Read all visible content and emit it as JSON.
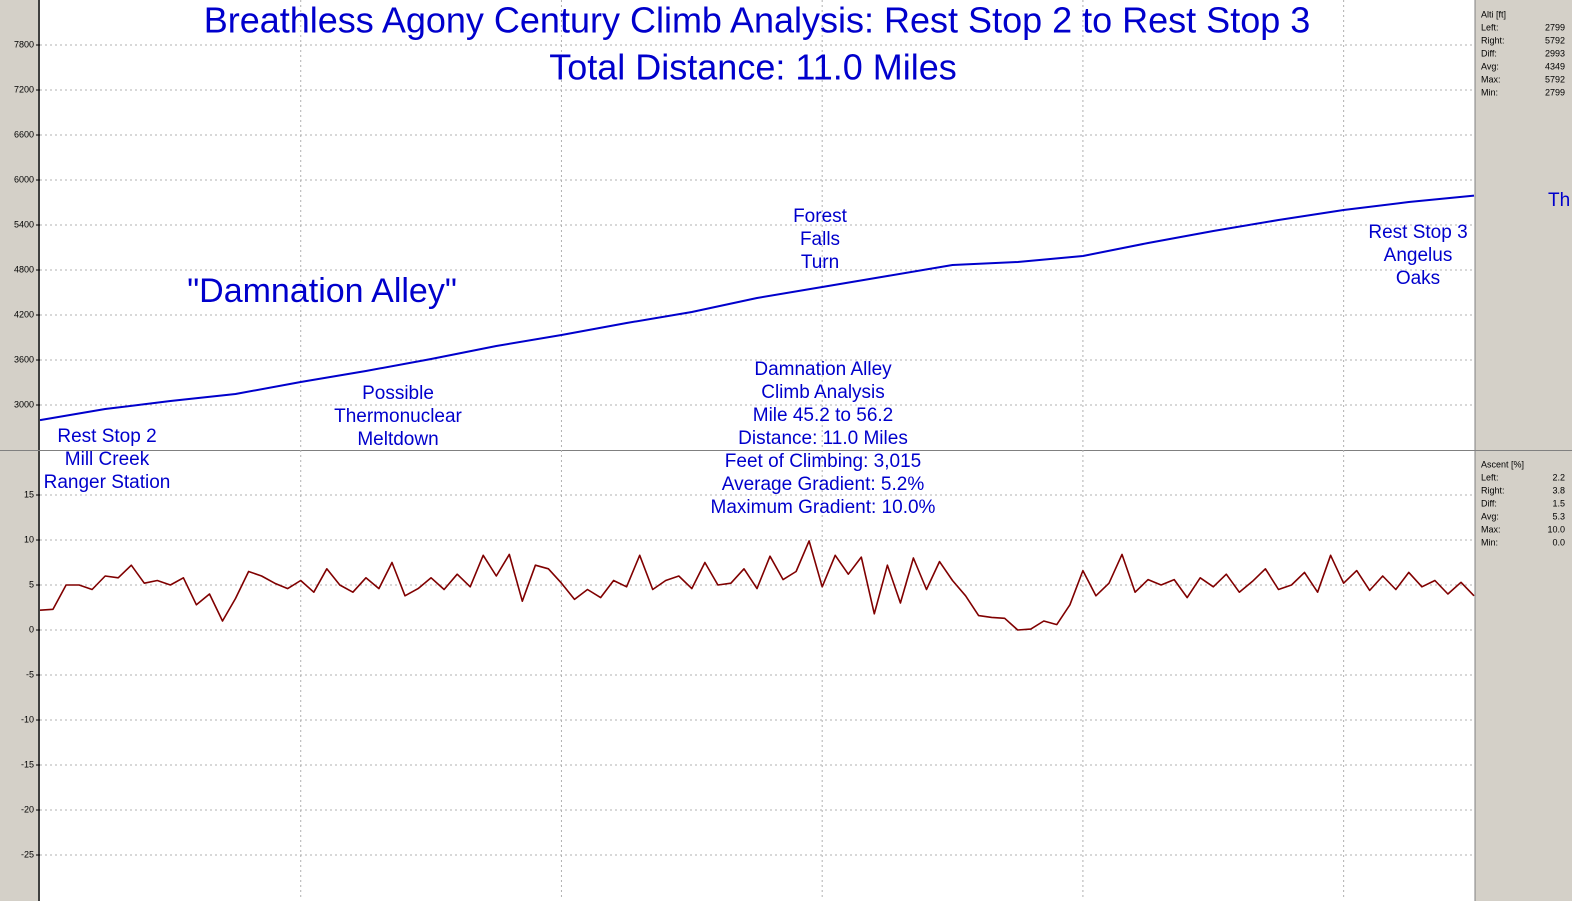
{
  "chart_data": [
    {
      "type": "line",
      "title": "Breathless Agony Century Climb Analysis: Rest Stop 2 to Rest Stop 3",
      "subtitle": "Total Distance: 11.0 Miles",
      "annotations": [
        [
          "Rest Stop 2",
          "Mill Creek",
          "Ranger Station"
        ],
        [
          "Possible",
          "Thermonuclear",
          "Meltdown"
        ],
        [
          "Damnation Alley",
          "Climb Analysis",
          "Mile 45.2 to 56.2",
          "Distance: 11.0 Miles",
          "Feet of Climbing: 3,015",
          "Average Gradient: 5.2%",
          "Maximum Gradient: 10.0%"
        ],
        [
          "Forest",
          "Falls",
          "Turn"
        ],
        [
          "Rest Stop 3",
          "Angelus",
          "Oaks"
        ],
        [
          "\"Damnation Alley\""
        ],
        [
          "Th"
        ]
      ],
      "stats_title": "Alti [ft]",
      "stats": [
        [
          "Left:",
          "2799"
        ],
        [
          "Right:",
          "5792"
        ],
        [
          "Diff:",
          "2993"
        ],
        [
          "Avg:",
          "4349"
        ],
        [
          "Max:",
          "5792"
        ],
        [
          "Min:",
          "2799"
        ]
      ],
      "xlim": [
        0,
        11
      ],
      "xticks": [
        2,
        4,
        6,
        8,
        10
      ],
      "ylim": [
        2400,
        8400
      ],
      "yticks": [
        3000,
        3600,
        4200,
        4800,
        5400,
        6000,
        6600,
        7200,
        7800
      ],
      "grid": true,
      "series": [
        {
          "name": "Altitude",
          "color": "#0000cc",
          "x": [
            0,
            0.5,
            1,
            1.5,
            2,
            2.5,
            3,
            3.5,
            4,
            4.5,
            5,
            5.5,
            6,
            6.5,
            7,
            7.5,
            8,
            8.5,
            9,
            9.5,
            10,
            10.5,
            11
          ],
          "values": [
            2799,
            2947,
            3053,
            3147,
            3307,
            3453,
            3613,
            3787,
            3933,
            4093,
            4240,
            4427,
            4573,
            4720,
            4867,
            4907,
            4987,
            5160,
            5320,
            5467,
            5600,
            5707,
            5792
          ]
        }
      ]
    },
    {
      "type": "line",
      "stats_title": "Ascent [%]",
      "stats": [
        [
          "Left:",
          "2.2"
        ],
        [
          "Right:",
          "3.8"
        ],
        [
          "Diff:",
          "1.5"
        ],
        [
          "Avg:",
          "5.3"
        ],
        [
          "Max:",
          "10.0"
        ],
        [
          "Min:",
          "0.0"
        ]
      ],
      "xlim": [
        0,
        11
      ],
      "xticks": [
        2,
        4,
        6,
        8,
        10
      ],
      "ylim": [
        -30,
        20
      ],
      "yticks": [
        15,
        10,
        5,
        0,
        -5,
        -10,
        -15,
        -20,
        -25
      ],
      "grid": true,
      "series": [
        {
          "name": "Ascent",
          "color": "#800000",
          "x": [
            0,
            0.1,
            0.2,
            0.3,
            0.4,
            0.5,
            0.6,
            0.7,
            0.8,
            0.9,
            1,
            1.1,
            1.2,
            1.3,
            1.4,
            1.5,
            1.6,
            1.7,
            1.8,
            1.9,
            2,
            2.1,
            2.2,
            2.3,
            2.4,
            2.5,
            2.6,
            2.7,
            2.8,
            2.9,
            3,
            3.1,
            3.2,
            3.3,
            3.4,
            3.5,
            3.6,
            3.7,
            3.8,
            3.9,
            4,
            4.1,
            4.2,
            4.3,
            4.4,
            4.5,
            4.6,
            4.7,
            4.8,
            4.9,
            5,
            5.1,
            5.2,
            5.3,
            5.4,
            5.5,
            5.6,
            5.7,
            5.8,
            5.9,
            6,
            6.1,
            6.2,
            6.3,
            6.4,
            6.5,
            6.6,
            6.7,
            6.8,
            6.9,
            7,
            7.1,
            7.2,
            7.3,
            7.4,
            7.5,
            7.6,
            7.7,
            7.8,
            7.9,
            8,
            8.1,
            8.2,
            8.3,
            8.4,
            8.5,
            8.6,
            8.7,
            8.8,
            8.9,
            9,
            9.1,
            9.2,
            9.3,
            9.4,
            9.5,
            9.6,
            9.7,
            9.8,
            9.9,
            10,
            10.1,
            10.2,
            10.3,
            10.4,
            10.5,
            10.6,
            10.7,
            10.8,
            10.9,
            11
          ],
          "values": [
            2.2,
            2.3,
            5.0,
            5.0,
            4.5,
            6.0,
            5.8,
            7.2,
            5.2,
            5.5,
            5.0,
            5.8,
            2.8,
            4.0,
            1.0,
            3.5,
            6.5,
            6.0,
            5.2,
            4.6,
            5.5,
            4.2,
            6.8,
            5.0,
            4.2,
            5.8,
            4.6,
            7.5,
            3.8,
            4.6,
            5.8,
            4.5,
            6.2,
            4.8,
            8.3,
            6.0,
            8.4,
            3.2,
            7.2,
            6.8,
            5.2,
            3.4,
            4.5,
            3.6,
            5.5,
            4.8,
            8.3,
            4.5,
            5.5,
            6.0,
            4.6,
            7.5,
            5.0,
            5.2,
            6.8,
            4.6,
            8.2,
            5.6,
            6.5,
            9.9,
            4.8,
            8.3,
            6.2,
            8.1,
            1.8,
            7.2,
            3.0,
            8.0,
            4.5,
            7.6,
            5.5,
            3.8,
            1.6,
            1.4,
            1.3,
            0.0,
            0.1,
            1.0,
            0.6,
            2.8,
            6.6,
            3.8,
            5.2,
            8.4,
            4.2,
            5.6,
            5.0,
            5.6,
            3.6,
            5.8,
            4.8,
            6.2,
            4.2,
            5.4,
            6.8,
            4.5,
            5.0,
            6.4,
            4.2,
            8.3,
            5.2,
            6.6,
            4.4,
            6.0,
            4.5,
            6.4,
            4.8,
            5.5,
            4.0,
            5.3,
            3.8
          ]
        }
      ]
    }
  ]
}
